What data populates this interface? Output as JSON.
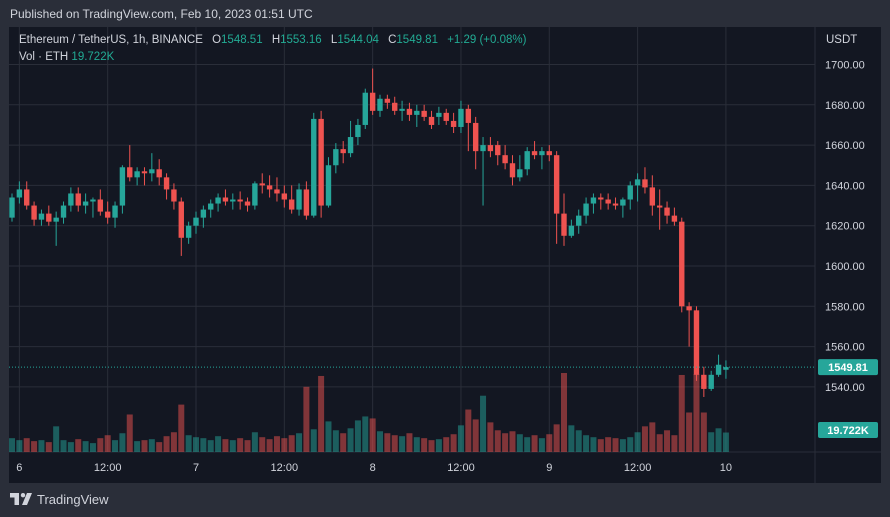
{
  "header": {
    "published": "Published on TradingView.com, Feb 10, 2023 01:51 UTC"
  },
  "legend": {
    "symbol": "Ethereum / TetherUS, 1h, BINANCE",
    "o_label": "O",
    "o": "1548.51",
    "h_label": "H",
    "h": "1553.16",
    "l_label": "L",
    "l": "1544.04",
    "c_label": "C",
    "c": "1549.81",
    "change": "+1.29 (+0.08%)",
    "vol_label": "Vol · ETH",
    "vol": "19.722K"
  },
  "footer": {
    "brand": "TradingView"
  },
  "colors": {
    "up": "#26a69a",
    "down": "#ef5350",
    "background": "#131722",
    "frame": "#2a2e39",
    "grid": "#2a2e39",
    "text": "#d1d4dc"
  },
  "chart_data": {
    "type": "candlestick",
    "currency": "USDT",
    "y_ticks": [
      "1700.00",
      "1680.00",
      "1660.00",
      "1640.00",
      "1620.00",
      "1600.00",
      "1580.00",
      "1560.00",
      "1540.00"
    ],
    "ylim": [
      1528,
      1714
    ],
    "x_ticks": [
      {
        "label": "6",
        "index": 1
      },
      {
        "label": "12:00",
        "index": 13
      },
      {
        "label": "7",
        "index": 25
      },
      {
        "label": "12:00",
        "index": 37
      },
      {
        "label": "8",
        "index": 49
      },
      {
        "label": "12:00",
        "index": 61
      },
      {
        "label": "9",
        "index": 73
      },
      {
        "label": "12:00",
        "index": 85
      },
      {
        "label": "10",
        "index": 97
      }
    ],
    "last_price_label": "1549.81",
    "last_volume_label": "19.722K",
    "grid": true,
    "candles": [
      [
        1624,
        1636,
        1622,
        1634,
        14
      ],
      [
        1634,
        1642,
        1631,
        1638,
        12
      ],
      [
        1638,
        1642,
        1628,
        1630,
        14
      ],
      [
        1630,
        1632,
        1620,
        1623,
        11
      ],
      [
        1623,
        1628,
        1620,
        1626,
        12
      ],
      [
        1626,
        1630,
        1620,
        1622,
        10
      ],
      [
        1622,
        1627,
        1610,
        1624,
        26
      ],
      [
        1624,
        1632,
        1621,
        1630,
        12
      ],
      [
        1630,
        1639,
        1627,
        1636,
        10
      ],
      [
        1636,
        1639,
        1627,
        1630,
        13
      ],
      [
        1630,
        1636,
        1626,
        1632,
        11
      ],
      [
        1632,
        1634,
        1624,
        1633,
        9
      ],
      [
        1633,
        1638,
        1625,
        1627,
        14
      ],
      [
        1627,
        1632,
        1621,
        1624,
        17
      ],
      [
        1624,
        1632,
        1619,
        1630,
        12
      ],
      [
        1630,
        1650,
        1626,
        1649,
        19
      ],
      [
        1649,
        1660,
        1642,
        1644,
        38
      ],
      [
        1644,
        1649,
        1640,
        1647,
        11
      ],
      [
        1647,
        1649,
        1640,
        1646,
        12
      ],
      [
        1646,
        1656,
        1642,
        1648,
        13
      ],
      [
        1648,
        1653,
        1640,
        1644,
        10
      ],
      [
        1644,
        1646,
        1633,
        1638,
        16
      ],
      [
        1638,
        1641,
        1628,
        1632,
        20
      ],
      [
        1632,
        1634,
        1605,
        1614,
        48
      ],
      [
        1614,
        1622,
        1611,
        1620,
        17
      ],
      [
        1620,
        1627,
        1616,
        1624,
        15
      ],
      [
        1624,
        1630,
        1619,
        1628,
        14
      ],
      [
        1628,
        1633,
        1624,
        1631,
        12
      ],
      [
        1631,
        1636,
        1627,
        1634,
        16
      ],
      [
        1634,
        1638,
        1630,
        1632,
        13
      ],
      [
        1632,
        1636,
        1628,
        1633,
        12
      ],
      [
        1633,
        1637,
        1628,
        1632,
        14
      ],
      [
        1632,
        1634,
        1627,
        1630,
        12
      ],
      [
        1630,
        1642,
        1628,
        1641,
        20
      ],
      [
        1641,
        1646,
        1636,
        1640,
        15
      ],
      [
        1640,
        1645,
        1634,
        1638,
        13
      ],
      [
        1638,
        1644,
        1632,
        1636,
        16
      ],
      [
        1636,
        1640,
        1629,
        1633,
        14
      ],
      [
        1633,
        1640,
        1626,
        1628,
        17
      ],
      [
        1628,
        1641,
        1625,
        1638,
        19
      ],
      [
        1638,
        1642,
        1623,
        1625,
        66
      ],
      [
        1625,
        1676,
        1624,
        1673,
        23
      ],
      [
        1673,
        1677,
        1624,
        1630,
        77
      ],
      [
        1630,
        1654,
        1629,
        1650,
        31
      ],
      [
        1650,
        1661,
        1646,
        1658,
        22
      ],
      [
        1658,
        1662,
        1651,
        1656,
        19
      ],
      [
        1656,
        1672,
        1654,
        1664,
        24
      ],
      [
        1664,
        1673,
        1660,
        1670,
        32
      ],
      [
        1670,
        1688,
        1668,
        1686,
        36
      ],
      [
        1686,
        1698,
        1675,
        1677,
        34
      ],
      [
        1677,
        1685,
        1674,
        1683,
        21
      ],
      [
        1683,
        1685,
        1678,
        1681,
        19
      ],
      [
        1681,
        1684,
        1675,
        1677,
        17
      ],
      [
        1677,
        1682,
        1672,
        1678,
        16
      ],
      [
        1678,
        1681,
        1672,
        1675,
        19
      ],
      [
        1675,
        1680,
        1669,
        1677,
        15
      ],
      [
        1677,
        1680,
        1672,
        1674,
        14
      ],
      [
        1674,
        1677,
        1668,
        1670,
        12
      ],
      [
        1674,
        1679,
        1670,
        1676,
        13
      ],
      [
        1676,
        1678,
        1670,
        1672,
        15
      ],
      [
        1672,
        1676,
        1666,
        1669,
        18
      ],
      [
        1669,
        1682,
        1666,
        1678,
        27
      ],
      [
        1678,
        1680,
        1657,
        1671,
        43
      ],
      [
        1671,
        1674,
        1648,
        1657,
        33
      ],
      [
        1657,
        1664,
        1630,
        1660,
        57
      ],
      [
        1660,
        1664,
        1654,
        1657,
        30
      ],
      [
        1660,
        1662,
        1650,
        1655,
        22
      ],
      [
        1655,
        1660,
        1648,
        1651,
        19
      ],
      [
        1651,
        1655,
        1640,
        1644,
        21
      ],
      [
        1644,
        1655,
        1642,
        1648,
        18
      ],
      [
        1648,
        1659,
        1645,
        1657,
        15
      ],
      [
        1657,
        1662,
        1653,
        1655,
        17
      ],
      [
        1655,
        1659,
        1648,
        1657,
        14
      ],
      [
        1657,
        1660,
        1652,
        1655,
        18
      ],
      [
        1655,
        1657,
        1611,
        1626,
        28
      ],
      [
        1626,
        1636,
        1610,
        1615,
        80
      ],
      [
        1615,
        1623,
        1614,
        1620,
        27
      ],
      [
        1620,
        1628,
        1616,
        1625,
        22
      ],
      [
        1625,
        1634,
        1621,
        1631,
        17
      ],
      [
        1631,
        1636,
        1626,
        1634,
        15
      ],
      [
        1634,
        1636,
        1628,
        1633,
        13
      ],
      [
        1633,
        1636,
        1628,
        1631,
        15
      ],
      [
        1631,
        1634,
        1628,
        1630,
        14
      ],
      [
        1630,
        1634,
        1624,
        1633,
        13
      ],
      [
        1633,
        1642,
        1628,
        1640,
        15
      ],
      [
        1640,
        1646,
        1632,
        1643,
        20
      ],
      [
        1643,
        1649,
        1636,
        1639,
        26
      ],
      [
        1639,
        1645,
        1625,
        1630,
        30
      ],
      [
        1630,
        1638,
        1618,
        1629,
        18
      ],
      [
        1629,
        1632,
        1621,
        1625,
        22
      ],
      [
        1625,
        1629,
        1620,
        1622,
        17
      ],
      [
        1622,
        1624,
        1577,
        1580,
        78
      ],
      [
        1580,
        1582,
        1560,
        1578,
        40
      ],
      [
        1578,
        1580,
        1543,
        1546,
        79
      ],
      [
        1546,
        1550,
        1535,
        1539,
        40
      ],
      [
        1539,
        1548,
        1538,
        1546,
        20
      ],
      [
        1546,
        1556,
        1545,
        1551,
        24
      ],
      [
        1548.51,
        1553.16,
        1544.04,
        1549.81,
        19.722
      ]
    ]
  }
}
